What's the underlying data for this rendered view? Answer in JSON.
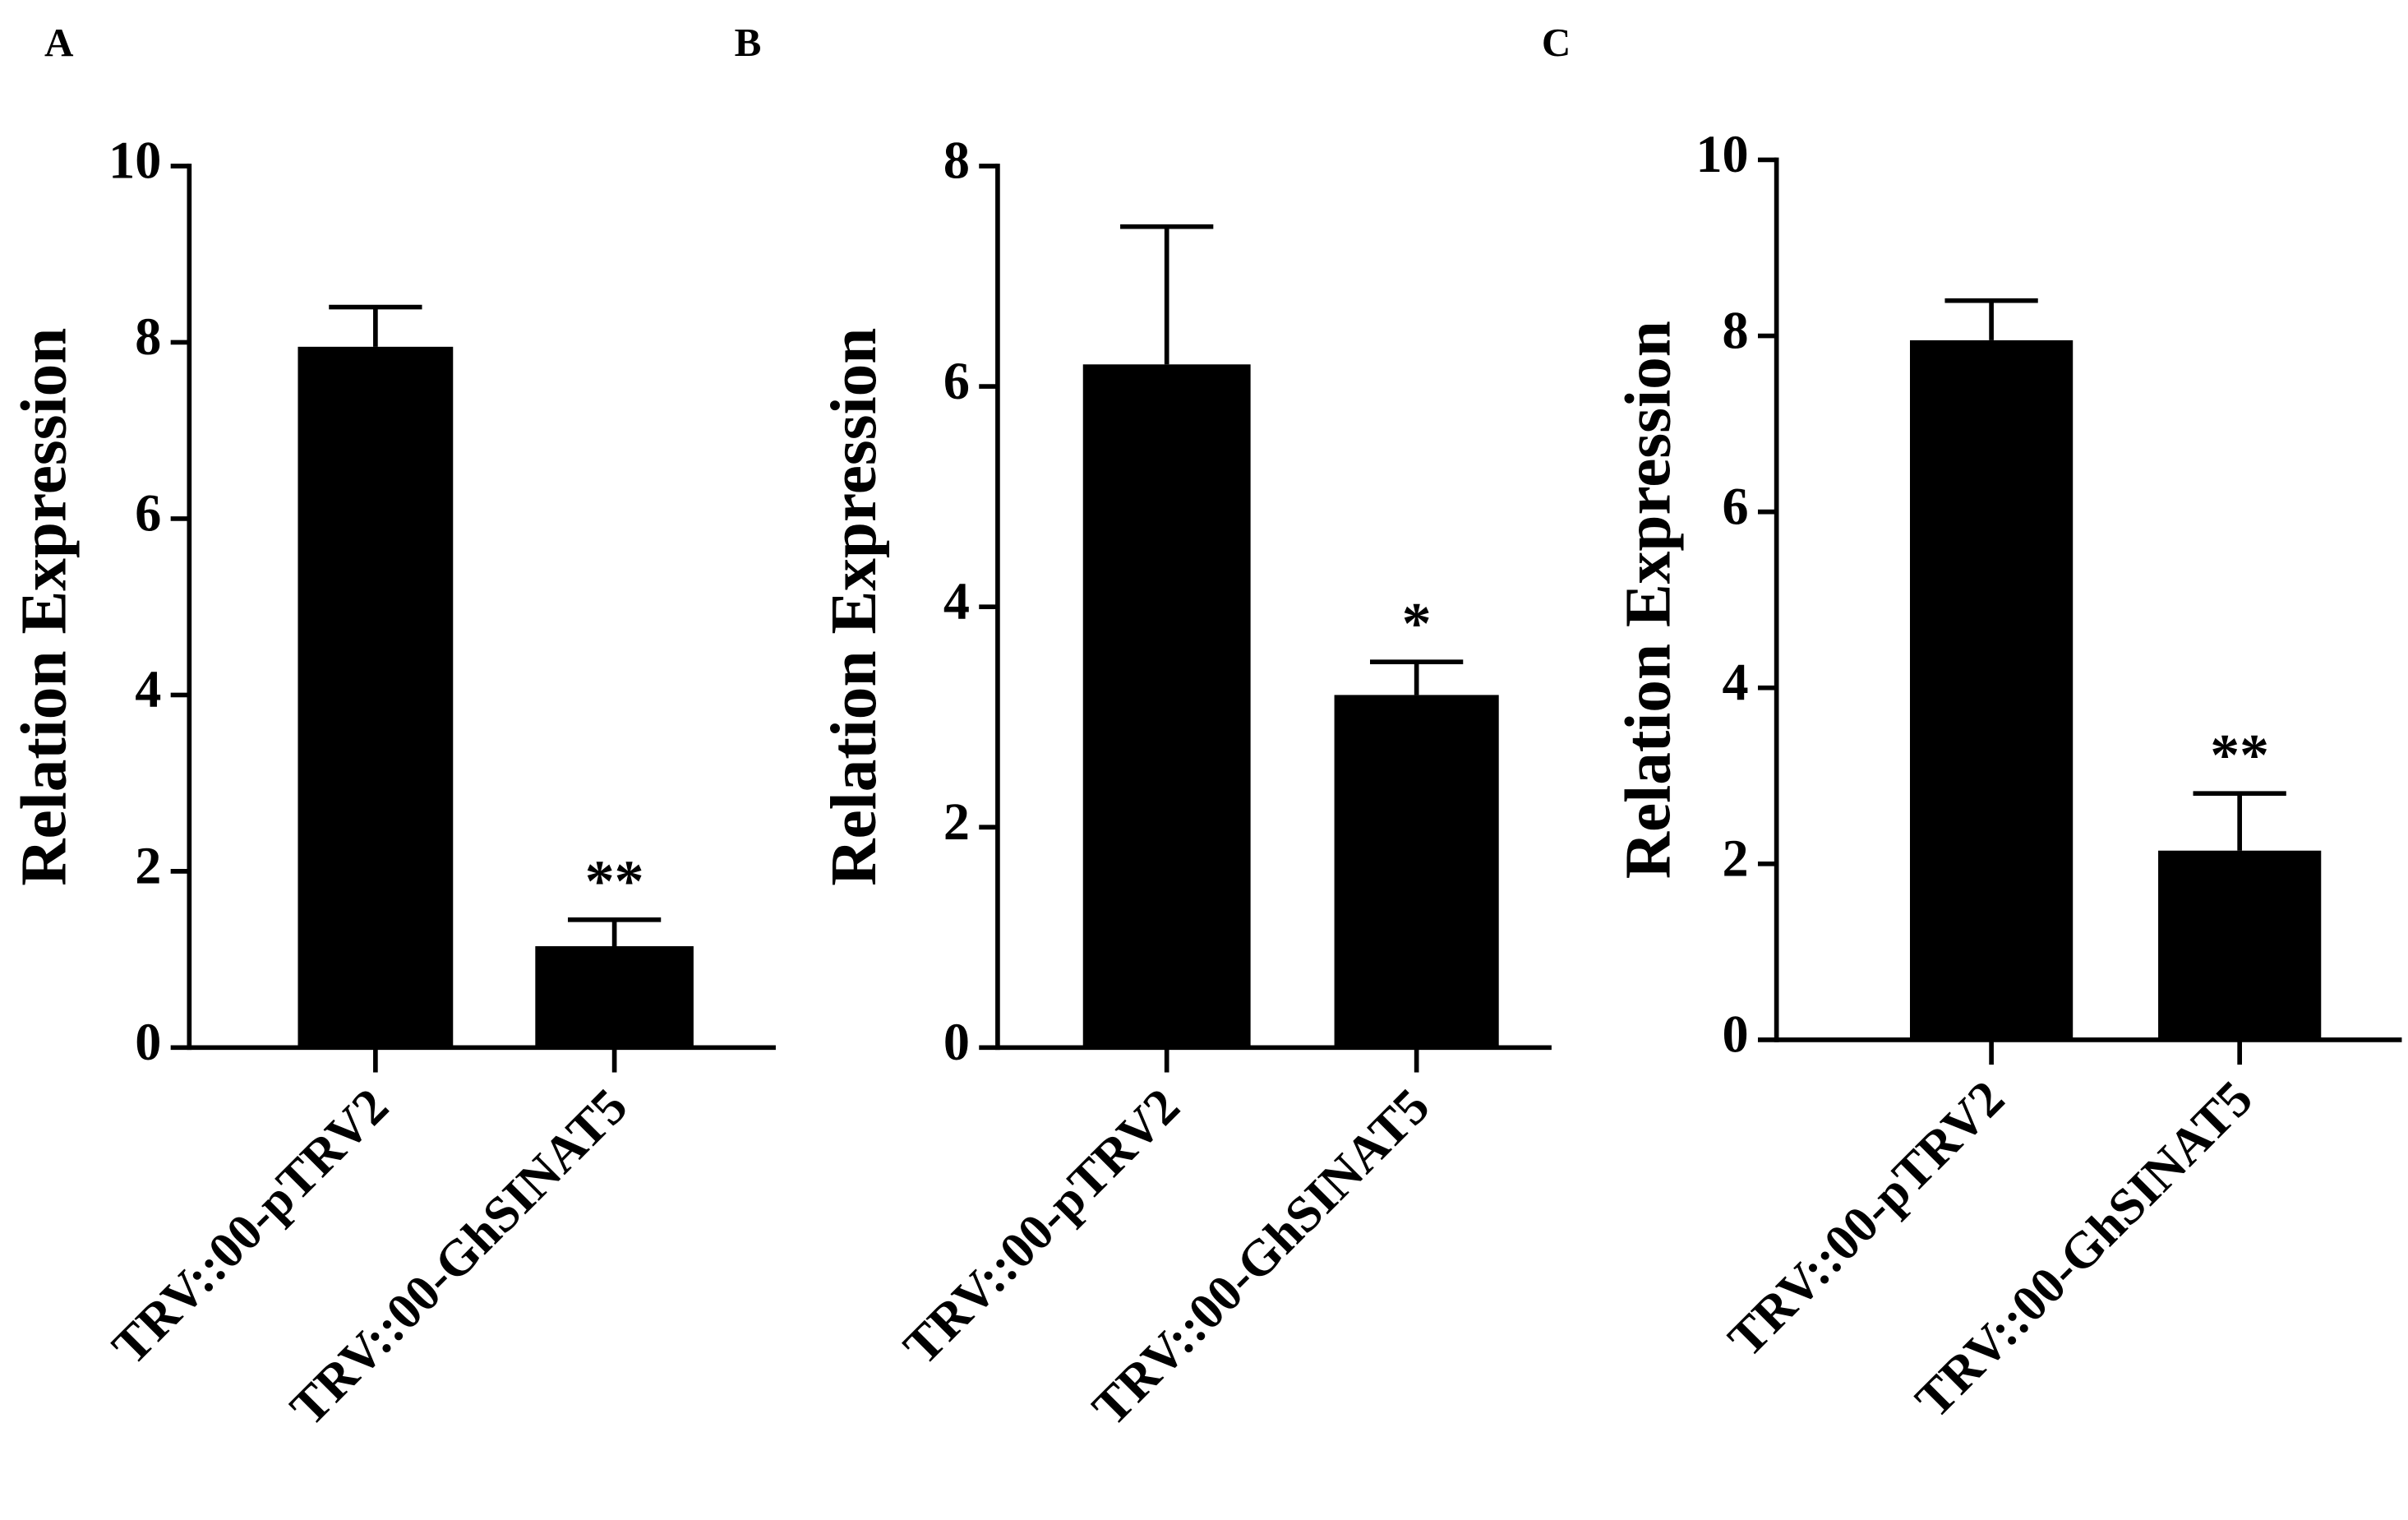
{
  "chart_data": [
    {
      "type": "bar",
      "panel": "A",
      "ylabel": "Relation Expression",
      "categories": [
        "TRV::00-pTRV2",
        "TRV::00-GhSINAT5"
      ],
      "values": [
        7.95,
        1.15
      ],
      "errors": [
        0.45,
        0.3
      ],
      "significance": [
        null,
        "**"
      ],
      "color": "#000000",
      "ylim": [
        0,
        10
      ],
      "yticks": [
        0,
        2,
        4,
        6,
        8,
        10
      ]
    },
    {
      "type": "bar",
      "panel": "B",
      "ylabel": "Relation Expression",
      "categories": [
        "TRV::00-pTRV2",
        "TRV::00-GhSINAT5"
      ],
      "values": [
        6.2,
        3.2
      ],
      "errors": [
        1.25,
        0.3
      ],
      "significance": [
        null,
        "*"
      ],
      "color": "#000000",
      "ylim": [
        0,
        8
      ],
      "yticks": [
        0,
        2,
        4,
        6,
        8
      ]
    },
    {
      "type": "bar",
      "panel": "C",
      "ylabel": "Relation Expression",
      "categories": [
        "TRV::00-pTRV2",
        "TRV::00-GhSINAT5"
      ],
      "values": [
        7.95,
        2.15
      ],
      "errors": [
        0.45,
        0.65
      ],
      "significance": [
        null,
        "**"
      ],
      "color": "#000000",
      "ylim": [
        0,
        10
      ],
      "yticks": [
        0,
        2,
        4,
        6,
        8,
        10
      ]
    }
  ]
}
